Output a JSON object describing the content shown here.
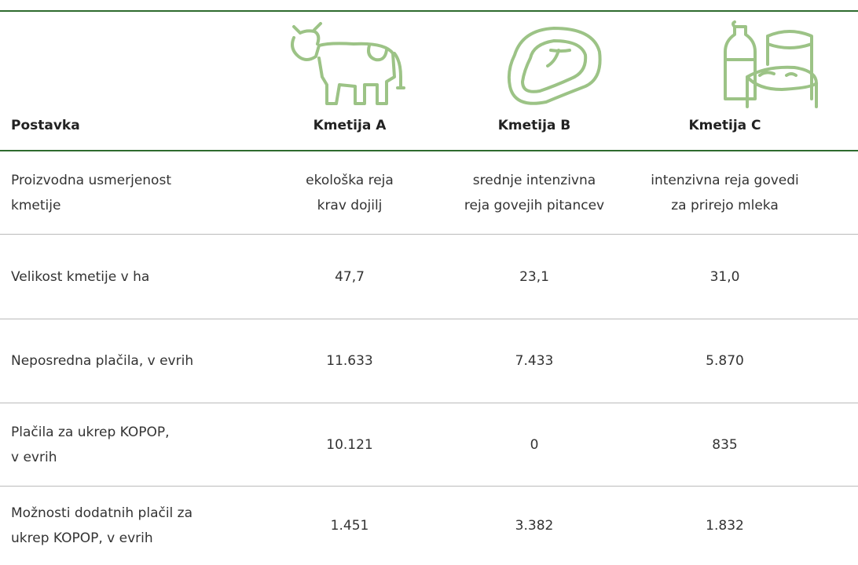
{
  "table": {
    "header": [
      "Postavka",
      "Kmetija A",
      "Kmetija B",
      "Kmetija C"
    ],
    "rows": [
      [
        [
          "Proizvodna usmerjenost",
          "kmetije"
        ],
        [
          "ekološka reja",
          "krav dojilj"
        ],
        [
          "srednje intenzivna",
          "reja govejih pitancev"
        ],
        [
          "intenzivna reja govedi",
          "za prirejo mleka"
        ]
      ],
      [
        [
          "Velikost kmetije v ha"
        ],
        [
          "47,7"
        ],
        [
          "23,1"
        ],
        [
          "31,0"
        ]
      ],
      [
        [
          "Neposredna plačila, v evrih"
        ],
        [
          "11.633"
        ],
        [
          "7.433"
        ],
        [
          "5.870"
        ]
      ],
      [
        [
          "Plačila za ukrep KOPOP,",
          "v evrih"
        ],
        [
          "10.121"
        ],
        [
          "0"
        ],
        [
          "835"
        ]
      ],
      [
        [
          "Možnosti dodatnih plačil za",
          "ukrep KOPOP, v evrih"
        ],
        [
          "1.451"
        ],
        [
          "3.382"
        ],
        [
          "1.832"
        ]
      ]
    ]
  }
}
